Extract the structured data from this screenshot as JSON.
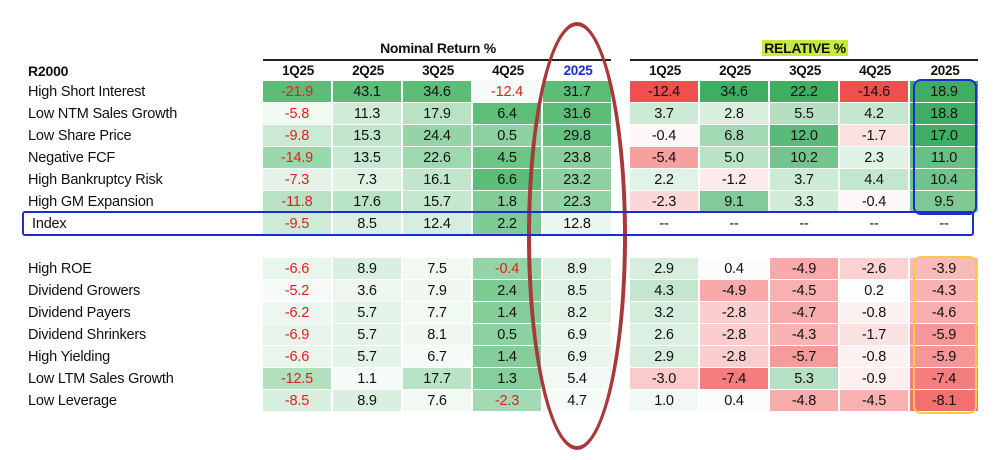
{
  "colors": {
    "negative_text": "#e02020",
    "highlight": "#c8ea3c",
    "blue": "#1c2dcf",
    "yellow": "#f7c948",
    "ellipse": "#a8393a"
  },
  "chart_data": {
    "type": "table",
    "row_header": "R2000",
    "groups": [
      {
        "title": "Nominal Return %",
        "highlighted": false,
        "columns": [
          "1Q25",
          "2Q25",
          "3Q25",
          "4Q25",
          "2025"
        ]
      },
      {
        "title": "RELATIVE %",
        "highlighted": true,
        "columns": [
          "1Q25",
          "2Q25",
          "3Q25",
          "4Q25",
          "2025"
        ]
      }
    ],
    "sections": [
      {
        "rows": [
          {
            "label": "High Short Interest",
            "nominal": [
              -21.9,
              43.1,
              34.6,
              -12.4,
              31.7
            ],
            "relative": [
              -12.4,
              34.6,
              22.2,
              -14.6,
              18.9
            ]
          },
          {
            "label": "Low NTM Sales Growth",
            "nominal": [
              -5.8,
              11.3,
              17.9,
              6.4,
              31.6
            ],
            "relative": [
              3.7,
              2.8,
              5.5,
              4.2,
              18.8
            ]
          },
          {
            "label": "Low Share Price",
            "nominal": [
              -9.8,
              15.3,
              24.4,
              0.5,
              29.8
            ],
            "relative": [
              -0.4,
              6.8,
              12.0,
              -1.7,
              17.0
            ]
          },
          {
            "label": "Negative FCF",
            "nominal": [
              -14.9,
              13.5,
              22.6,
              4.5,
              23.8
            ],
            "relative": [
              -5.4,
              5.0,
              10.2,
              2.3,
              11.0
            ]
          },
          {
            "label": "High Bankruptcy Risk",
            "nominal": [
              -7.3,
              7.3,
              16.1,
              6.6,
              23.2
            ],
            "relative": [
              2.2,
              -1.2,
              3.7,
              4.4,
              10.4
            ]
          },
          {
            "label": "High GM Expansion",
            "nominal": [
              -11.8,
              17.6,
              15.7,
              1.8,
              22.3
            ],
            "relative": [
              -2.3,
              9.1,
              3.3,
              -0.4,
              9.5
            ]
          }
        ]
      },
      {
        "index": {
          "label": "Index",
          "nominal": [
            -9.5,
            8.5,
            12.4,
            2.2,
            12.8
          ],
          "relative_text": "--"
        }
      },
      {
        "rows": [
          {
            "label": "High ROE",
            "nominal": [
              -6.6,
              8.9,
              7.5,
              -0.4,
              8.9
            ],
            "relative": [
              2.9,
              0.4,
              -4.9,
              -2.6,
              -3.9
            ]
          },
          {
            "label": "Dividend Growers",
            "nominal": [
              -5.2,
              3.6,
              7.9,
              2.4,
              8.5
            ],
            "relative": [
              4.3,
              -4.9,
              -4.5,
              0.2,
              -4.3
            ]
          },
          {
            "label": "Dividend Payers",
            "nominal": [
              -6.2,
              5.7,
              7.7,
              1.4,
              8.2
            ],
            "relative": [
              3.2,
              -2.8,
              -4.7,
              -0.8,
              -4.6
            ]
          },
          {
            "label": "Dividend Shrinkers",
            "nominal": [
              -6.9,
              5.7,
              8.1,
              0.5,
              6.9
            ],
            "relative": [
              2.6,
              -2.8,
              -4.3,
              -1.7,
              -5.9
            ]
          },
          {
            "label": "High Yielding",
            "nominal": [
              -6.6,
              5.7,
              6.7,
              1.4,
              6.9
            ],
            "relative": [
              2.9,
              -2.8,
              -5.7,
              -0.8,
              -5.9
            ]
          },
          {
            "label": "Low LTM Sales Growth",
            "nominal": [
              -12.5,
              1.1,
              17.7,
              1.3,
              5.4
            ],
            "relative": [
              -3.0,
              -7.4,
              5.3,
              -0.9,
              -7.4
            ]
          },
          {
            "label": "Low Leverage",
            "nominal": [
              -8.5,
              8.9,
              7.6,
              -2.3,
              4.7
            ],
            "relative": [
              1.0,
              0.4,
              -4.8,
              -4.5,
              -8.1
            ]
          }
        ]
      }
    ],
    "annotations": [
      {
        "kind": "ellipse",
        "target": "nominal 2025 column",
        "color": "#a8393a"
      },
      {
        "kind": "box",
        "target": "Index row",
        "color": "#1c2dcf"
      },
      {
        "kind": "box",
        "target": "relative 2025, top section",
        "color": "#1c2dcf"
      },
      {
        "kind": "box",
        "target": "relative 2025, bottom section",
        "color": "#f7c948"
      }
    ]
  }
}
